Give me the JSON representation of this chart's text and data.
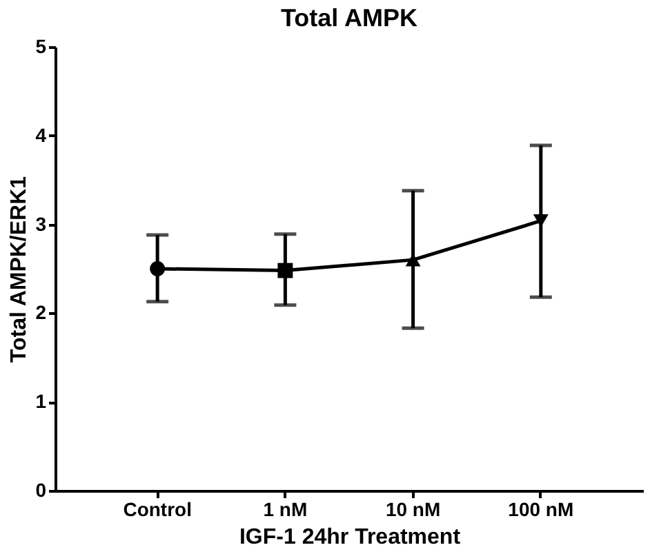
{
  "chart_data": {
    "type": "line",
    "title": "Total AMPK",
    "xlabel": "IGF-1 24hr Treatment",
    "ylabel": "Total AMPK/ERK1",
    "categories": [
      "Control",
      "1 nM",
      "10 nM",
      "100 nM"
    ],
    "series": [
      {
        "color": "#000000",
        "values": [
          2.5,
          2.48,
          2.6,
          3.04
        ],
        "errors": [
          [
            2.13,
            2.88
          ],
          [
            2.09,
            2.89
          ],
          [
            1.83,
            3.38
          ],
          [
            2.18,
            3.89
          ]
        ],
        "marker": "none"
      },
      {
        "type": "scatter",
        "color": "#000000",
        "values": [
          2.5,
          null,
          null,
          null
        ],
        "marker": "circle"
      },
      {
        "type": "scatter",
        "color": "#000000",
        "values": [
          null,
          2.48,
          null,
          null
        ],
        "marker": "square"
      },
      {
        "type": "scatter",
        "color": "#000000",
        "values": [
          null,
          null,
          2.6,
          null
        ],
        "marker": "triangle"
      },
      {
        "type": "scatter",
        "color": "#000000",
        "values": [
          null,
          null,
          null,
          3.04
        ],
        "marker": "triangle-down"
      }
    ],
    "ylim": [
      0,
      5
    ],
    "yticks": [
      0,
      1,
      2,
      3,
      4,
      5
    ],
    "grid": false
  }
}
